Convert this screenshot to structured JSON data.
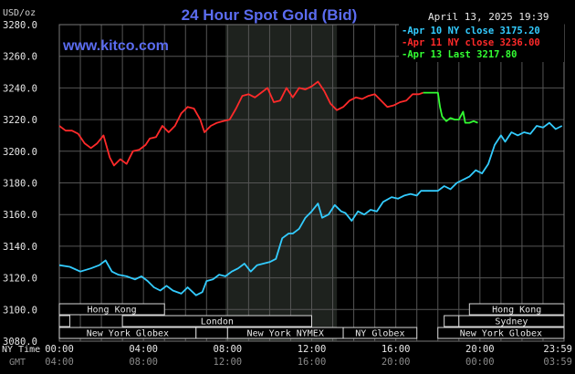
{
  "header": {
    "title": "24 Hour Spot Gold (Bid)",
    "unit": "USD/oz",
    "date": "April 13, 2025 19:39",
    "watermark": "www.kitco.com"
  },
  "legend": [
    {
      "prefix": "-",
      "label": "Apr 10 NY close 3175.20",
      "color": "#33ccff"
    },
    {
      "prefix": "-",
      "label": "Apr 11 NY close 3236.00",
      "color": "#ff2a2a"
    },
    {
      "prefix": "-",
      "label": "Apr 13 Last 3217.80",
      "color": "#33ff33"
    }
  ],
  "axis_labels": {
    "ny_time": "NY Time",
    "gmt": "GMT"
  },
  "sessions": {
    "row1": [
      {
        "label": "Hong Kong",
        "start": 0,
        "end": 5
      },
      {
        "label": "Hong Kong",
        "start": 19.5,
        "end": 24
      }
    ],
    "row2": [
      {
        "label": "",
        "start": 0,
        "end": 0.5
      },
      {
        "label": "London",
        "start": 3.0,
        "end": 12.0
      },
      {
        "label": "",
        "start": 18.3,
        "end": 19.0
      },
      {
        "label": "Sydney",
        "start": 19.0,
        "end": 24
      }
    ],
    "row3": [
      {
        "label": "New York Globex",
        "start": 0,
        "end": 6.5
      },
      {
        "label": "",
        "start": 6.5,
        "end": 8.0
      },
      {
        "label": "New York NYMEX",
        "start": 8.0,
        "end": 13.5
      },
      {
        "label": "NY Globex",
        "start": 13.5,
        "end": 17.0
      },
      {
        "label": "New York Globex",
        "start": 18.0,
        "end": 24
      }
    ]
  },
  "chart_data": {
    "type": "line",
    "title": "24 Hour Spot Gold (Bid)",
    "ylabel": "USD/oz",
    "xlabel": "",
    "xlim": [
      0,
      24
    ],
    "ylim": [
      3080,
      3280
    ],
    "yticks": [
      "3280.0",
      "3260.0",
      "3240.0",
      "3220.0",
      "3200.0",
      "3180.0",
      "3160.0",
      "3140.0",
      "3120.0",
      "3100.0",
      "3080.0"
    ],
    "yticks_values": [
      3280,
      3260,
      3240,
      3220,
      3200,
      3180,
      3160,
      3140,
      3120,
      3100,
      3080
    ],
    "xticks_ny": [
      "00:00",
      "04:00",
      "08:00",
      "12:00",
      "16:00",
      "20:00",
      "23:59"
    ],
    "xticks_gmt": [
      "04:00",
      "08:00",
      "12:00",
      "16:00",
      "20:00",
      "00:00",
      "03:59"
    ],
    "xticks_values": [
      0,
      4,
      8,
      12,
      16,
      20,
      24
    ],
    "shaded_region": [
      7.9,
      13.2
    ],
    "series": [
      {
        "name": "Apr 10 NY close 3175.20",
        "color": "#33ccff",
        "points": [
          [
            0,
            3128
          ],
          [
            0.5,
            3127
          ],
          [
            1.0,
            3124
          ],
          [
            1.5,
            3126
          ],
          [
            1.9,
            3128
          ],
          [
            2.2,
            3131
          ],
          [
            2.5,
            3124
          ],
          [
            2.8,
            3122
          ],
          [
            3.2,
            3121
          ],
          [
            3.6,
            3119
          ],
          [
            3.9,
            3121
          ],
          [
            4.2,
            3118
          ],
          [
            4.5,
            3114
          ],
          [
            4.8,
            3112
          ],
          [
            5.1,
            3115
          ],
          [
            5.4,
            3112
          ],
          [
            5.8,
            3110
          ],
          [
            6.1,
            3114
          ],
          [
            6.5,
            3109
          ],
          [
            6.8,
            3111
          ],
          [
            7.0,
            3118
          ],
          [
            7.3,
            3119
          ],
          [
            7.6,
            3122
          ],
          [
            7.9,
            3121
          ],
          [
            8.2,
            3124
          ],
          [
            8.5,
            3126
          ],
          [
            8.8,
            3129
          ],
          [
            9.1,
            3124
          ],
          [
            9.4,
            3128
          ],
          [
            9.7,
            3129
          ],
          [
            10.0,
            3130
          ],
          [
            10.3,
            3132
          ],
          [
            10.6,
            3145
          ],
          [
            10.9,
            3148
          ],
          [
            11.1,
            3148
          ],
          [
            11.4,
            3151
          ],
          [
            11.7,
            3158
          ],
          [
            12.0,
            3162
          ],
          [
            12.3,
            3167
          ],
          [
            12.5,
            3158
          ],
          [
            12.8,
            3160
          ],
          [
            13.1,
            3166
          ],
          [
            13.4,
            3162
          ],
          [
            13.6,
            3161
          ],
          [
            13.9,
            3156
          ],
          [
            14.2,
            3162
          ],
          [
            14.5,
            3160
          ],
          [
            14.8,
            3163
          ],
          [
            15.1,
            3162
          ],
          [
            15.4,
            3168
          ],
          [
            15.8,
            3171
          ],
          [
            16.1,
            3170
          ],
          [
            16.4,
            3172
          ],
          [
            16.7,
            3173
          ],
          [
            17.0,
            3172
          ],
          [
            17.2,
            3175
          ],
          [
            18.0,
            3175
          ],
          [
            18.3,
            3178
          ],
          [
            18.6,
            3176
          ],
          [
            18.9,
            3180
          ],
          [
            19.2,
            3182
          ],
          [
            19.5,
            3184
          ],
          [
            19.8,
            3188
          ],
          [
            20.1,
            3186
          ],
          [
            20.4,
            3192
          ],
          [
            20.7,
            3204
          ],
          [
            21.0,
            3210
          ],
          [
            21.2,
            3206
          ],
          [
            21.5,
            3212
          ],
          [
            21.8,
            3210
          ],
          [
            22.1,
            3212
          ],
          [
            22.4,
            3211
          ],
          [
            22.7,
            3216
          ],
          [
            23.0,
            3215
          ],
          [
            23.3,
            3218
          ],
          [
            23.6,
            3214
          ],
          [
            23.9,
            3216
          ]
        ]
      },
      {
        "name": "Apr 11 NY close 3236.00",
        "color": "#ff2a2a",
        "points": [
          [
            0,
            3216
          ],
          [
            0.3,
            3213
          ],
          [
            0.6,
            3213
          ],
          [
            0.9,
            3211
          ],
          [
            1.2,
            3205
          ],
          [
            1.5,
            3202
          ],
          [
            1.8,
            3205
          ],
          [
            2.1,
            3210
          ],
          [
            2.4,
            3196
          ],
          [
            2.6,
            3191
          ],
          [
            2.9,
            3195
          ],
          [
            3.2,
            3192
          ],
          [
            3.5,
            3200
          ],
          [
            3.8,
            3201
          ],
          [
            4.1,
            3204
          ],
          [
            4.3,
            3208
          ],
          [
            4.6,
            3209
          ],
          [
            4.9,
            3216
          ],
          [
            5.2,
            3212
          ],
          [
            5.5,
            3216
          ],
          [
            5.8,
            3224
          ],
          [
            6.1,
            3228
          ],
          [
            6.4,
            3227
          ],
          [
            6.7,
            3220
          ],
          [
            6.9,
            3212
          ],
          [
            7.2,
            3216
          ],
          [
            7.5,
            3218
          ],
          [
            7.8,
            3219
          ],
          [
            8.1,
            3220
          ],
          [
            8.4,
            3227
          ],
          [
            8.7,
            3235
          ],
          [
            9.0,
            3236
          ],
          [
            9.3,
            3234
          ],
          [
            9.6,
            3237
          ],
          [
            9.9,
            3240
          ],
          [
            10.2,
            3231
          ],
          [
            10.5,
            3232
          ],
          [
            10.8,
            3240
          ],
          [
            11.1,
            3234
          ],
          [
            11.4,
            3240
          ],
          [
            11.7,
            3239
          ],
          [
            12.0,
            3241
          ],
          [
            12.3,
            3244
          ],
          [
            12.6,
            3238
          ],
          [
            12.9,
            3230
          ],
          [
            13.2,
            3226
          ],
          [
            13.5,
            3228
          ],
          [
            13.8,
            3232
          ],
          [
            14.1,
            3234
          ],
          [
            14.4,
            3233
          ],
          [
            14.7,
            3235
          ],
          [
            15.0,
            3236
          ],
          [
            15.3,
            3232
          ],
          [
            15.6,
            3228
          ],
          [
            15.9,
            3229
          ],
          [
            16.2,
            3231
          ],
          [
            16.5,
            3232
          ],
          [
            16.8,
            3236
          ],
          [
            17.1,
            3236
          ],
          [
            17.3,
            3237
          ]
        ]
      },
      {
        "name": "Apr 13 Last 3217.80",
        "color": "#33ff33",
        "points": [
          [
            17.3,
            3237
          ],
          [
            18.0,
            3237
          ],
          [
            18.1,
            3228
          ],
          [
            18.2,
            3222
          ],
          [
            18.4,
            3219
          ],
          [
            18.6,
            3221
          ],
          [
            18.8,
            3220
          ],
          [
            19.0,
            3220
          ],
          [
            19.2,
            3225
          ],
          [
            19.3,
            3218
          ],
          [
            19.5,
            3218
          ],
          [
            19.7,
            3219
          ],
          [
            19.9,
            3218
          ]
        ]
      }
    ]
  }
}
